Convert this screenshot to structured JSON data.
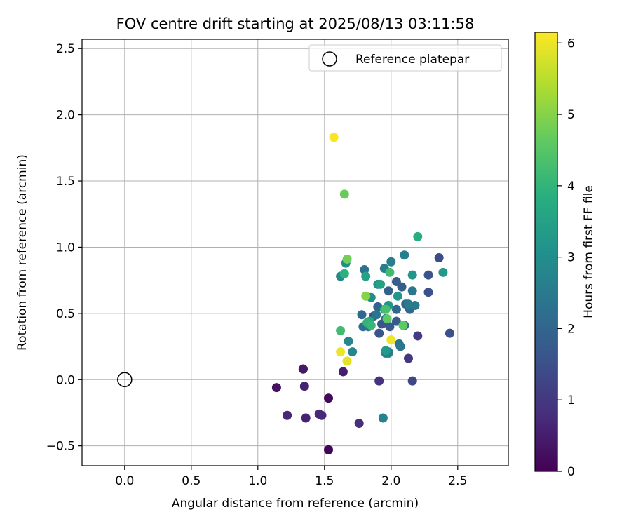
{
  "chart_data": {
    "type": "scatter",
    "title": "FOV centre drift starting at 2025/08/13 03:11:58",
    "xlabel": "Angular distance from reference (arcmin)",
    "ylabel": "Rotation from reference (arcmin)",
    "xlim": [
      -0.32,
      2.88
    ],
    "ylim": [
      -0.65,
      2.57
    ],
    "xticks": [
      0.0,
      0.5,
      1.0,
      1.5,
      2.0,
      2.5
    ],
    "xtick_labels": [
      "0.0",
      "0.5",
      "1.0",
      "1.5",
      "2.0",
      "2.5"
    ],
    "yticks": [
      -0.5,
      0.0,
      0.5,
      1.0,
      1.5,
      2.0,
      2.5
    ],
    "ytick_labels": [
      "−0.5",
      "0.0",
      "0.5",
      "1.0",
      "1.5",
      "2.0",
      "2.5"
    ],
    "grid": true,
    "legend": {
      "position": "top-right",
      "label": "Reference platepar"
    },
    "reference_point": {
      "x": 0.0,
      "y": 0.0
    },
    "colorbar": {
      "label": "Hours from first FF file",
      "range": [
        0,
        6.15
      ],
      "ticks": [
        0,
        1,
        2,
        3,
        4,
        5,
        6
      ],
      "tick_labels": [
        "0",
        "1",
        "2",
        "3",
        "4",
        "5",
        "6"
      ],
      "colormap": "viridis"
    },
    "points": [
      {
        "x": 1.53,
        "y": -0.53,
        "c": 0.05
      },
      {
        "x": 1.53,
        "y": -0.14,
        "c": 0.1
      },
      {
        "x": 1.14,
        "y": -0.06,
        "c": 0.3
      },
      {
        "x": 1.34,
        "y": 0.08,
        "c": 0.35
      },
      {
        "x": 1.34,
        "y": 0.08,
        "c": 0.4
      },
      {
        "x": 1.36,
        "y": -0.29,
        "c": 0.6
      },
      {
        "x": 1.35,
        "y": -0.05,
        "c": 0.6
      },
      {
        "x": 1.64,
        "y": 0.06,
        "c": 0.5
      },
      {
        "x": 1.46,
        "y": -0.26,
        "c": 0.7
      },
      {
        "x": 1.48,
        "y": -0.27,
        "c": 0.7
      },
      {
        "x": 1.22,
        "y": -0.27,
        "c": 0.7
      },
      {
        "x": 1.76,
        "y": -0.33,
        "c": 0.8
      },
      {
        "x": 1.91,
        "y": -0.01,
        "c": 0.9
      },
      {
        "x": 2.13,
        "y": 0.16,
        "c": 1.0
      },
      {
        "x": 2.2,
        "y": 0.33,
        "c": 1.1
      },
      {
        "x": 2.16,
        "y": -0.01,
        "c": 1.3
      },
      {
        "x": 2.44,
        "y": 0.35,
        "c": 1.5
      },
      {
        "x": 2.36,
        "y": 0.92,
        "c": 1.4
      },
      {
        "x": 2.28,
        "y": 0.79,
        "c": 1.6
      },
      {
        "x": 2.28,
        "y": 0.66,
        "c": 1.5
      },
      {
        "x": 1.91,
        "y": 0.35,
        "c": 1.6
      },
      {
        "x": 1.87,
        "y": 0.48,
        "c": 1.6
      },
      {
        "x": 1.93,
        "y": 0.42,
        "c": 1.6
      },
      {
        "x": 1.99,
        "y": 0.4,
        "c": 1.7
      },
      {
        "x": 2.04,
        "y": 0.44,
        "c": 1.7
      },
      {
        "x": 2.04,
        "y": 0.74,
        "c": 1.8
      },
      {
        "x": 2.08,
        "y": 0.7,
        "c": 1.8
      },
      {
        "x": 1.98,
        "y": 0.67,
        "c": 1.9
      },
      {
        "x": 1.96,
        "y": 0.46,
        "c": 1.9
      },
      {
        "x": 1.9,
        "y": 0.55,
        "c": 2.0
      },
      {
        "x": 2.1,
        "y": 0.41,
        "c": 2.0
      },
      {
        "x": 2.11,
        "y": 0.57,
        "c": 2.0
      },
      {
        "x": 2.04,
        "y": 0.53,
        "c": 2.1
      },
      {
        "x": 2.14,
        "y": 0.53,
        "c": 2.1
      },
      {
        "x": 1.78,
        "y": 0.49,
        "c": 2.1
      },
      {
        "x": 1.79,
        "y": 0.4,
        "c": 2.2
      },
      {
        "x": 1.8,
        "y": 0.83,
        "c": 2.3
      },
      {
        "x": 1.83,
        "y": 0.4,
        "c": 2.4
      },
      {
        "x": 2.16,
        "y": 0.67,
        "c": 2.4
      },
      {
        "x": 1.89,
        "y": 0.49,
        "c": 2.4
      },
      {
        "x": 2.06,
        "y": 0.27,
        "c": 2.3
      },
      {
        "x": 2.07,
        "y": 0.25,
        "c": 2.4
      },
      {
        "x": 2.1,
        "y": 0.94,
        "c": 2.6
      },
      {
        "x": 2.18,
        "y": 0.56,
        "c": 2.5
      },
      {
        "x": 2.13,
        "y": 0.57,
        "c": 2.5
      },
      {
        "x": 2.0,
        "y": 0.89,
        "c": 2.6
      },
      {
        "x": 1.95,
        "y": 0.84,
        "c": 2.6
      },
      {
        "x": 1.98,
        "y": 0.21,
        "c": 2.6
      },
      {
        "x": 1.98,
        "y": 0.2,
        "c": 2.6
      },
      {
        "x": 1.96,
        "y": 0.2,
        "c": 2.7
      },
      {
        "x": 1.94,
        "y": -0.29,
        "c": 2.7
      },
      {
        "x": 1.71,
        "y": 0.21,
        "c": 2.8
      },
      {
        "x": 1.68,
        "y": 0.29,
        "c": 2.8
      },
      {
        "x": 1.62,
        "y": 0.78,
        "c": 2.9
      },
      {
        "x": 1.66,
        "y": 0.88,
        "c": 3.0
      },
      {
        "x": 1.85,
        "y": 0.62,
        "c": 3.0
      },
      {
        "x": 1.9,
        "y": 0.72,
        "c": 3.1
      },
      {
        "x": 2.16,
        "y": 0.79,
        "c": 3.2
      },
      {
        "x": 2.05,
        "y": 0.63,
        "c": 3.2
      },
      {
        "x": 1.98,
        "y": 0.56,
        "c": 3.2
      },
      {
        "x": 1.96,
        "y": 0.22,
        "c": 3.3
      },
      {
        "x": 2.39,
        "y": 0.81,
        "c": 3.3
      },
      {
        "x": 1.81,
        "y": 0.78,
        "c": 3.5
      },
      {
        "x": 1.92,
        "y": 0.72,
        "c": 3.5
      },
      {
        "x": 1.95,
        "y": 0.53,
        "c": 3.6
      },
      {
        "x": 1.84,
        "y": 0.44,
        "c": 3.6
      },
      {
        "x": 2.2,
        "y": 1.08,
        "c": 3.8
      },
      {
        "x": 1.65,
        "y": 0.8,
        "c": 3.9
      },
      {
        "x": 1.82,
        "y": 0.43,
        "c": 4.0
      },
      {
        "x": 1.85,
        "y": 0.41,
        "c": 4.1
      },
      {
        "x": 1.62,
        "y": 0.37,
        "c": 4.2
      },
      {
        "x": 1.99,
        "y": 0.81,
        "c": 4.2
      },
      {
        "x": 1.96,
        "y": 0.53,
        "c": 4.3
      },
      {
        "x": 1.97,
        "y": 0.46,
        "c": 4.6
      },
      {
        "x": 2.09,
        "y": 0.41,
        "c": 4.6
      },
      {
        "x": 1.65,
        "y": 1.4,
        "c": 4.7
      },
      {
        "x": 1.67,
        "y": 0.91,
        "c": 4.8
      },
      {
        "x": 1.81,
        "y": 0.63,
        "c": 5.0
      },
      {
        "x": 2.0,
        "y": 0.3,
        "c": 6.0
      },
      {
        "x": 1.62,
        "y": 0.21,
        "c": 6.0
      },
      {
        "x": 1.67,
        "y": 0.14,
        "c": 5.9
      },
      {
        "x": 1.57,
        "y": 1.83,
        "c": 6.1
      }
    ]
  }
}
